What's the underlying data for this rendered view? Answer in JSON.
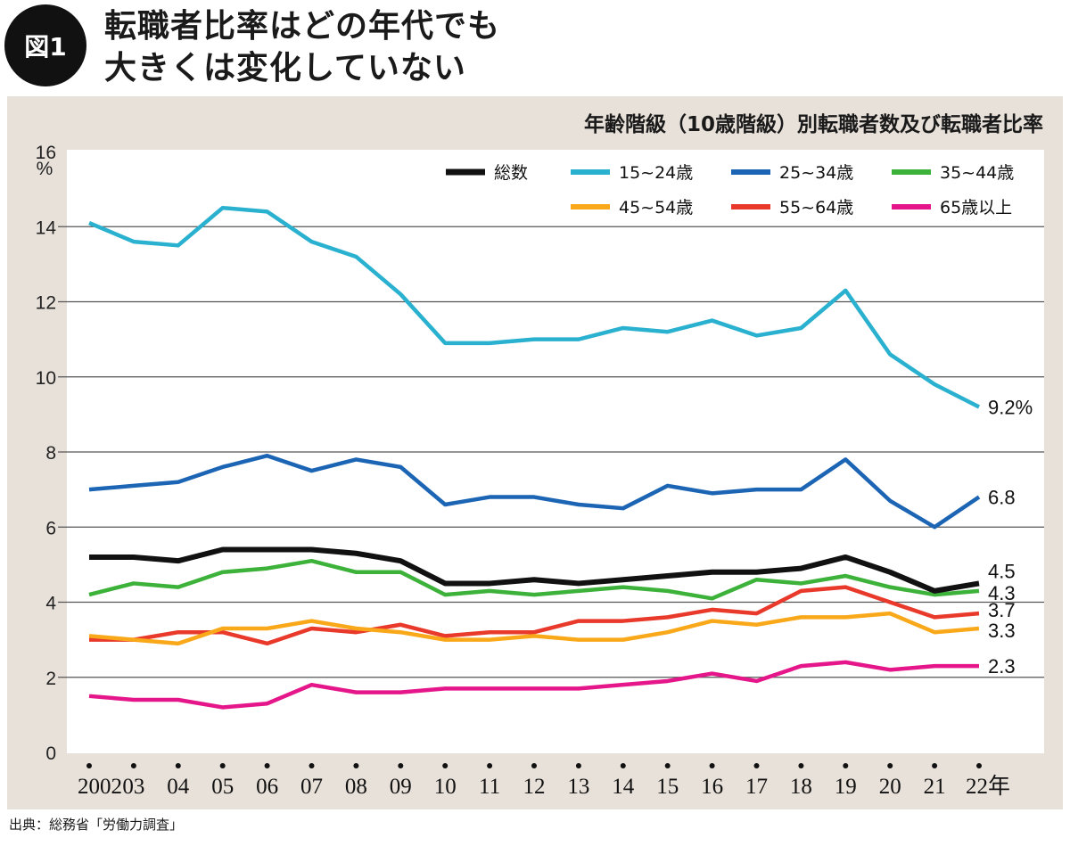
{
  "header": {
    "badge": "図1",
    "title_line1": "転職者比率はどの年代でも",
    "title_line2": "大きくは変化していない"
  },
  "source": "出典：総務省「労働力調査」",
  "chart_data": {
    "type": "line",
    "title": "年齢階級（10歳階級）別転職者数及び転職者比率",
    "ylabel": "%",
    "xlabel": "",
    "ylim": [
      0,
      16
    ],
    "yticks": [
      "0",
      "2",
      "4",
      "6",
      "8",
      "10",
      "12",
      "14",
      "16"
    ],
    "grid": true,
    "legend_position": "top-right",
    "categories": [
      "2002",
      "03",
      "04",
      "05",
      "06",
      "07",
      "08",
      "09",
      "10",
      "11",
      "12",
      "13",
      "14",
      "15",
      "16",
      "17",
      "18",
      "19",
      "20",
      "21",
      "22年"
    ],
    "series": [
      {
        "name": "総数",
        "color": "#111111",
        "end_label": "4.5",
        "values": [
          5.2,
          5.2,
          5.1,
          5.4,
          5.4,
          5.4,
          5.3,
          5.1,
          4.5,
          4.5,
          4.6,
          4.5,
          4.6,
          4.7,
          4.8,
          4.8,
          4.9,
          5.2,
          4.8,
          4.3,
          4.5
        ]
      },
      {
        "name": "15~24歳",
        "color": "#29b1cf",
        "end_label": "9.2%",
        "values": [
          14.1,
          13.6,
          13.5,
          14.5,
          14.4,
          13.6,
          13.2,
          12.2,
          10.9,
          10.9,
          11.0,
          11.0,
          11.3,
          11.2,
          11.5,
          11.1,
          11.3,
          12.3,
          10.6,
          9.8,
          9.2
        ]
      },
      {
        "name": "25~34歳",
        "color": "#1c64b4",
        "end_label": "6.8",
        "values": [
          7.0,
          7.1,
          7.2,
          7.6,
          7.9,
          7.5,
          7.8,
          7.6,
          6.6,
          6.8,
          6.8,
          6.6,
          6.5,
          7.1,
          6.9,
          7.0,
          7.0,
          7.8,
          6.7,
          6.0,
          6.8
        ]
      },
      {
        "name": "35~44歳",
        "color": "#3db23a",
        "end_label": "4.3",
        "values": [
          4.2,
          4.5,
          4.4,
          4.8,
          4.9,
          5.1,
          4.8,
          4.8,
          4.2,
          4.3,
          4.2,
          4.3,
          4.4,
          4.3,
          4.1,
          4.6,
          4.5,
          4.7,
          4.4,
          4.2,
          4.3
        ]
      },
      {
        "name": "45~54歳",
        "color": "#f9a81a",
        "end_label": "3.3",
        "values": [
          3.1,
          3.0,
          2.9,
          3.3,
          3.3,
          3.5,
          3.3,
          3.2,
          3.0,
          3.0,
          3.1,
          3.0,
          3.0,
          3.2,
          3.5,
          3.4,
          3.6,
          3.6,
          3.7,
          3.2,
          3.3
        ]
      },
      {
        "name": "55~64歳",
        "color": "#e8392b",
        "end_label": "3.7",
        "values": [
          3.0,
          3.0,
          3.2,
          3.2,
          2.9,
          3.3,
          3.2,
          3.4,
          3.1,
          3.2,
          3.2,
          3.5,
          3.5,
          3.6,
          3.8,
          3.7,
          4.3,
          4.4,
          4.0,
          3.6,
          3.7
        ]
      },
      {
        "name": "65歳以上",
        "color": "#e5168a",
        "end_label": "2.3",
        "values": [
          1.5,
          1.4,
          1.4,
          1.2,
          1.3,
          1.8,
          1.6,
          1.6,
          1.7,
          1.7,
          1.7,
          1.7,
          1.8,
          1.9,
          2.1,
          1.9,
          2.3,
          2.4,
          2.2,
          2.3,
          2.3
        ]
      }
    ]
  }
}
